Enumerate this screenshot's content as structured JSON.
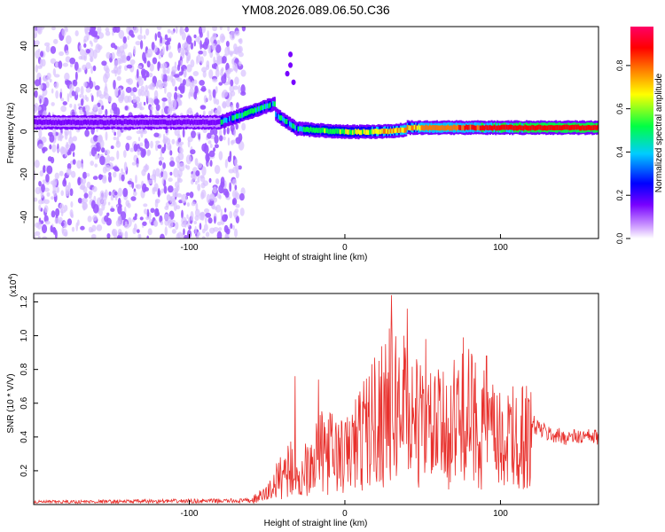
{
  "title": "YM08.2026.089.06.50.C36",
  "chart_data": [
    {
      "type": "heatmap",
      "xlabel": "Height of straight line (km)",
      "ylabel": "Frequency (Hz)",
      "xlim": [
        -200,
        163
      ],
      "ylim": [
        -50,
        49
      ],
      "xticks": [
        -100,
        0,
        100
      ],
      "yticks": [
        -40,
        -20,
        0,
        20,
        40
      ],
      "colorbar": {
        "label": "Normalized spectral amplitude",
        "range": [
          0,
          0.98
        ],
        "ticks": [
          "0.0",
          "0.2",
          "0.4",
          "0.6",
          "0.8"
        ],
        "tick_values": [
          0.0,
          0.2,
          0.4,
          0.6,
          0.8
        ],
        "colors": [
          "#ffffff",
          "#cc99ff",
          "#7700ff",
          "#0000ff",
          "#00ccff",
          "#00ff44",
          "#ffff00",
          "#ff7700",
          "#ff0000",
          "#ff0066"
        ]
      },
      "colors": {
        "noise": "#9b59ff",
        "faint": "#d9c2ff"
      }
    },
    {
      "type": "line",
      "multiplier_label": "(x10",
      "multiplier_exp": "4",
      "multiplier_close": ")",
      "xlabel": "Height of straight line (km)",
      "ylabel": "SNR (10 * V/V)",
      "xlim": [
        -200,
        163
      ],
      "ylim": [
        0,
        1.25
      ],
      "xticks": [
        -100,
        0,
        100
      ],
      "yticks": [
        "0.2",
        "0.4",
        "0.6",
        "0.8",
        "1.0",
        "1.2"
      ],
      "ytick_values": [
        0.2,
        0.4,
        0.6,
        0.8,
        1.0,
        1.2
      ],
      "color": "#e8302c",
      "envelope": {
        "x": [
          -200,
          -60,
          -50,
          -40,
          -35,
          -30,
          -25,
          -20,
          -10,
          0,
          10,
          20,
          30,
          40,
          50,
          60,
          70,
          80,
          90,
          100,
          110,
          120,
          130,
          140,
          150,
          163
        ],
        "y": [
          0.02,
          0.03,
          0.08,
          0.22,
          0.28,
          0.12,
          0.3,
          0.36,
          0.38,
          0.34,
          0.48,
          0.62,
          0.72,
          0.66,
          0.56,
          0.5,
          0.58,
          0.62,
          0.54,
          0.44,
          0.5,
          0.48,
          0.42,
          0.4,
          0.4,
          0.4
        ]
      },
      "peaks": [
        {
          "x": -32,
          "y": 0.76
        },
        {
          "x": -17,
          "y": 0.74
        },
        {
          "x": 26,
          "y": 0.95
        },
        {
          "x": 30,
          "y": 1.24
        },
        {
          "x": 38,
          "y": 1.0
        },
        {
          "x": 40,
          "y": 1.16
        },
        {
          "x": 52,
          "y": 0.98
        },
        {
          "x": 60,
          "y": 0.8
        },
        {
          "x": 76,
          "y": 0.99
        },
        {
          "x": 91,
          "y": 0.88
        },
        {
          "x": 108,
          "y": 0.7
        }
      ]
    }
  ]
}
